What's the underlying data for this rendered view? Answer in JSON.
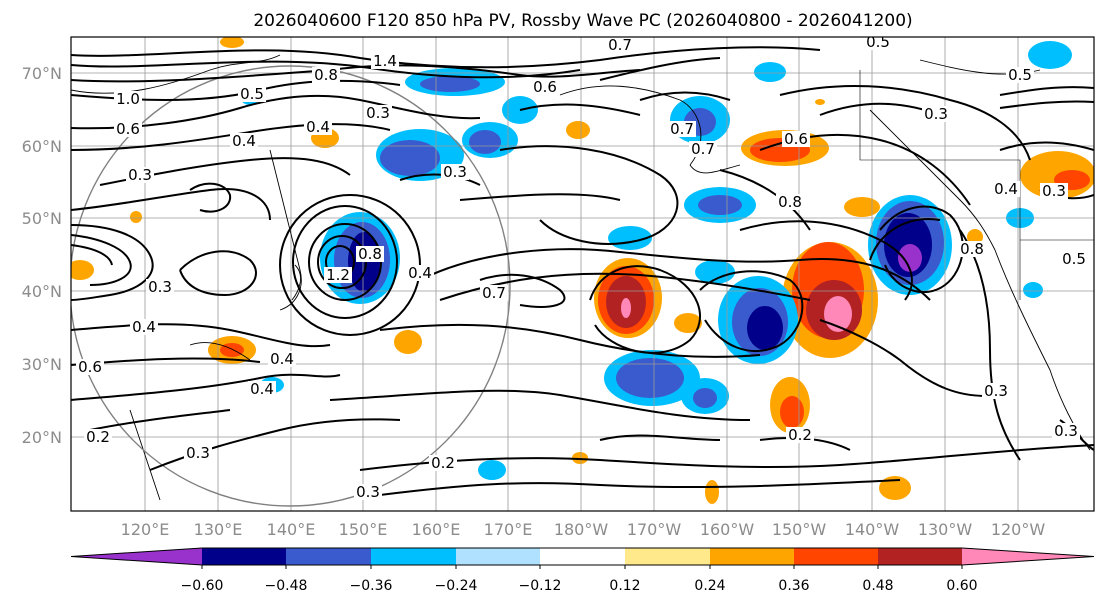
{
  "title": "2026040600 F120 850 hPa PV, Rossby Wave PC (2026040800 - 2026041200)",
  "map": {
    "lat_labels": [
      "70°N",
      "60°N",
      "50°N",
      "40°N",
      "30°N",
      "20°N"
    ],
    "lon_labels": [
      "120°E",
      "130°E",
      "140°E",
      "150°E",
      "160°E",
      "170°E",
      "180°W",
      "170°W",
      "160°W",
      "150°W",
      "140°W",
      "130°W",
      "120°W"
    ]
  },
  "contour_labels": [
    "1.4",
    "1.0",
    "0.6",
    "0.8",
    "0.3",
    "0.4",
    "0.6",
    "0.7",
    "0.3",
    "0.5",
    "0.4",
    "0.3",
    "1.2",
    "0.8",
    "0.4",
    "0.7",
    "0.8",
    "0.3",
    "0.4",
    "0.6",
    "0.2",
    "0.3",
    "0.4",
    "0.3",
    "0.2",
    "0.3",
    "0.2",
    "0.3",
    "0.5",
    "0.4",
    "0.3",
    "0.5",
    "0.6",
    "0.7",
    "0.7",
    "0.8",
    "0.5",
    "0.3",
    "0.4"
  ],
  "colorbar": {
    "ticks": [
      "−0.60",
      "−0.48",
      "−0.36",
      "−0.24",
      "−0.12",
      "0.12",
      "0.24",
      "0.36",
      "0.48",
      "0.60"
    ],
    "colors": [
      "#9932cc",
      "#00008b",
      "#3a5bcd",
      "#00bfff",
      "#b0e2ff",
      "#ffffff",
      "#ffe98a",
      "#ffa500",
      "#ff4500",
      "#b22222",
      "#ff88b8"
    ]
  }
}
